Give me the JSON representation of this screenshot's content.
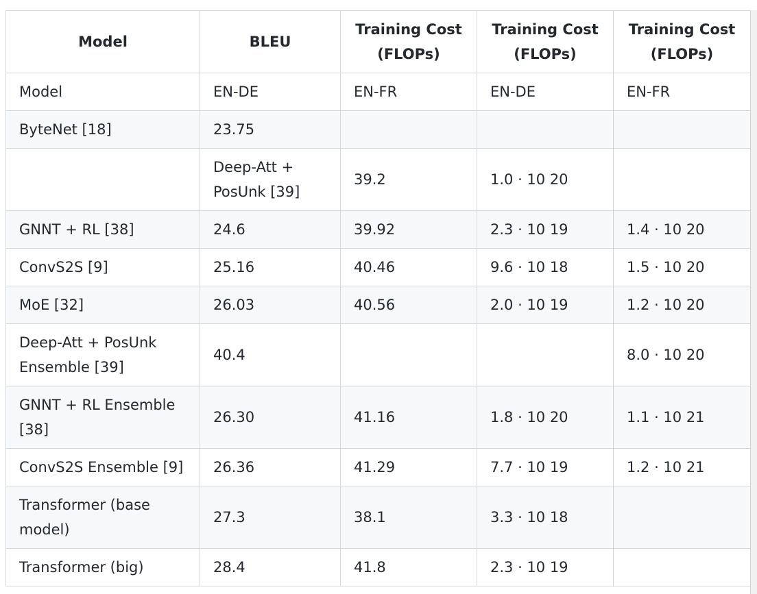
{
  "table": {
    "headers": [
      "Model",
      "BLEU",
      "Training Cost (FLOPs)",
      "Training Cost (FLOPs)",
      "Training Cost (FLOPs)"
    ],
    "rows": [
      [
        "Model",
        "EN-DE",
        "EN-FR",
        "EN-DE",
        "EN-FR"
      ],
      [
        "ByteNet [18]",
        "23.75",
        "",
        "",
        ""
      ],
      [
        "",
        "Deep-Att + PosUnk [39]",
        "39.2",
        "1.0 · 10 20",
        ""
      ],
      [
        "GNNT + RL [38]",
        "24.6",
        "39.92",
        "2.3 · 10 19",
        "1.4 · 10 20"
      ],
      [
        "ConvS2S [9]",
        "25.16",
        "40.46",
        "9.6 · 10 18",
        "1.5 · 10 20"
      ],
      [
        "MoE [32]",
        "26.03",
        "40.56",
        "2.0 · 10 19",
        "1.2 · 10 20"
      ],
      [
        "Deep-Att + PosUnk Ensemble [39]",
        "40.4",
        "",
        "",
        "8.0 · 10 20"
      ],
      [
        "GNNT + RL Ensemble [38]",
        "26.30",
        "41.16",
        "1.8 · 10 20",
        "1.1 · 10 21"
      ],
      [
        "ConvS2S Ensemble [9]",
        "26.36",
        "41.29",
        "7.7 · 10 19",
        "1.2 · 10 21"
      ],
      [
        "Transformer (base model)",
        "27.3",
        "38.1",
        "3.3 · 10 18",
        ""
      ],
      [
        "Transformer (big)",
        "28.4",
        "41.8",
        "2.3 · 10 19",
        ""
      ]
    ]
  }
}
